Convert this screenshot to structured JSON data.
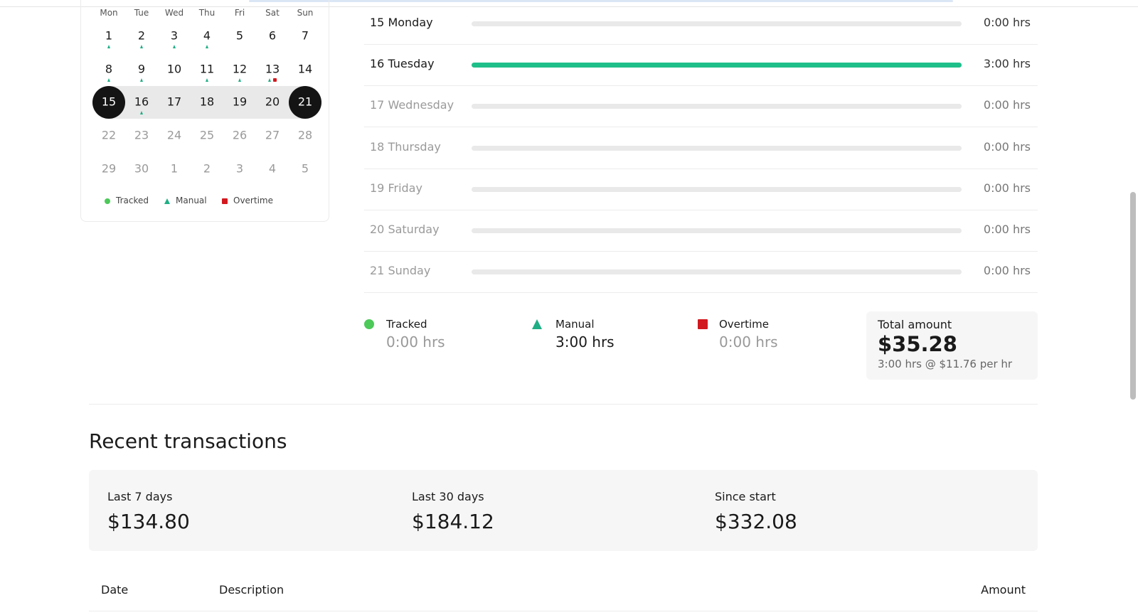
{
  "calendar": {
    "weekdays": [
      "Mon",
      "Tue",
      "Wed",
      "Thu",
      "Fri",
      "Sat",
      "Sun"
    ],
    "weeks": [
      {
        "state": "normal",
        "days": [
          {
            "day": "1",
            "marks": [
              "manual"
            ]
          },
          {
            "day": "2",
            "marks": [
              "manual"
            ]
          },
          {
            "day": "3",
            "marks": [
              "manual"
            ]
          },
          {
            "day": "4",
            "marks": [
              "manual"
            ]
          },
          {
            "day": "5",
            "marks": []
          },
          {
            "day": "6",
            "marks": []
          },
          {
            "day": "7",
            "marks": []
          }
        ]
      },
      {
        "state": "normal",
        "days": [
          {
            "day": "8",
            "marks": [
              "manual"
            ]
          },
          {
            "day": "9",
            "marks": [
              "manual"
            ]
          },
          {
            "day": "10",
            "marks": []
          },
          {
            "day": "11",
            "marks": [
              "manual"
            ]
          },
          {
            "day": "12",
            "marks": [
              "manual"
            ]
          },
          {
            "day": "13",
            "marks": [
              "manual",
              "overtime"
            ]
          },
          {
            "day": "14",
            "marks": []
          }
        ]
      },
      {
        "state": "selected",
        "days": [
          {
            "day": "15",
            "marks": []
          },
          {
            "day": "16",
            "marks": [
              "manual"
            ]
          },
          {
            "day": "17",
            "marks": []
          },
          {
            "day": "18",
            "marks": []
          },
          {
            "day": "19",
            "marks": []
          },
          {
            "day": "20",
            "marks": []
          },
          {
            "day": "21",
            "marks": []
          }
        ]
      },
      {
        "state": "muted",
        "days": [
          {
            "day": "22",
            "marks": []
          },
          {
            "day": "23",
            "marks": []
          },
          {
            "day": "24",
            "marks": []
          },
          {
            "day": "25",
            "marks": []
          },
          {
            "day": "26",
            "marks": []
          },
          {
            "day": "27",
            "marks": []
          },
          {
            "day": "28",
            "marks": []
          }
        ]
      },
      {
        "state": "muted",
        "days": [
          {
            "day": "29",
            "marks": []
          },
          {
            "day": "30",
            "marks": []
          },
          {
            "day": "1",
            "marks": []
          },
          {
            "day": "2",
            "marks": []
          },
          {
            "day": "3",
            "marks": []
          },
          {
            "day": "4",
            "marks": []
          },
          {
            "day": "5",
            "marks": []
          }
        ]
      }
    ],
    "legend": {
      "tracked": "Tracked",
      "manual": "Manual",
      "overtime": "Overtime"
    }
  },
  "days": [
    {
      "label": "15 Monday",
      "hours": 0,
      "hours_label": "0:00 hrs",
      "active": true
    },
    {
      "label": "16 Tuesday",
      "hours": 3,
      "hours_label": "3:00 hrs",
      "active": true
    },
    {
      "label": "17 Wednesday",
      "hours": 0,
      "hours_label": "0:00 hrs",
      "active": false
    },
    {
      "label": "18 Thursday",
      "hours": 0,
      "hours_label": "0:00 hrs",
      "active": false
    },
    {
      "label": "19 Friday",
      "hours": 0,
      "hours_label": "0:00 hrs",
      "active": false
    },
    {
      "label": "20 Saturday",
      "hours": 0,
      "hours_label": "0:00 hrs",
      "active": false
    },
    {
      "label": "21 Sunday",
      "hours": 0,
      "hours_label": "0:00 hrs",
      "active": false
    }
  ],
  "summary": {
    "tracked": {
      "label": "Tracked",
      "value": "0:00 hrs"
    },
    "manual": {
      "label": "Manual",
      "value": "3:00 hrs"
    },
    "overtime": {
      "label": "Overtime",
      "value": "0:00 hrs"
    },
    "total": {
      "label": "Total amount",
      "value": "$35.28",
      "detail": "3:00 hrs @ $11.76 per hr"
    }
  },
  "transactions": {
    "title": "Recent transactions",
    "stats": [
      {
        "label": "Last 7 days",
        "value": "$134.80"
      },
      {
        "label": "Last 30 days",
        "value": "$184.12"
      },
      {
        "label": "Since start",
        "value": "$332.08"
      }
    ],
    "columns": [
      "Date",
      "Description",
      "Amount"
    ]
  }
}
